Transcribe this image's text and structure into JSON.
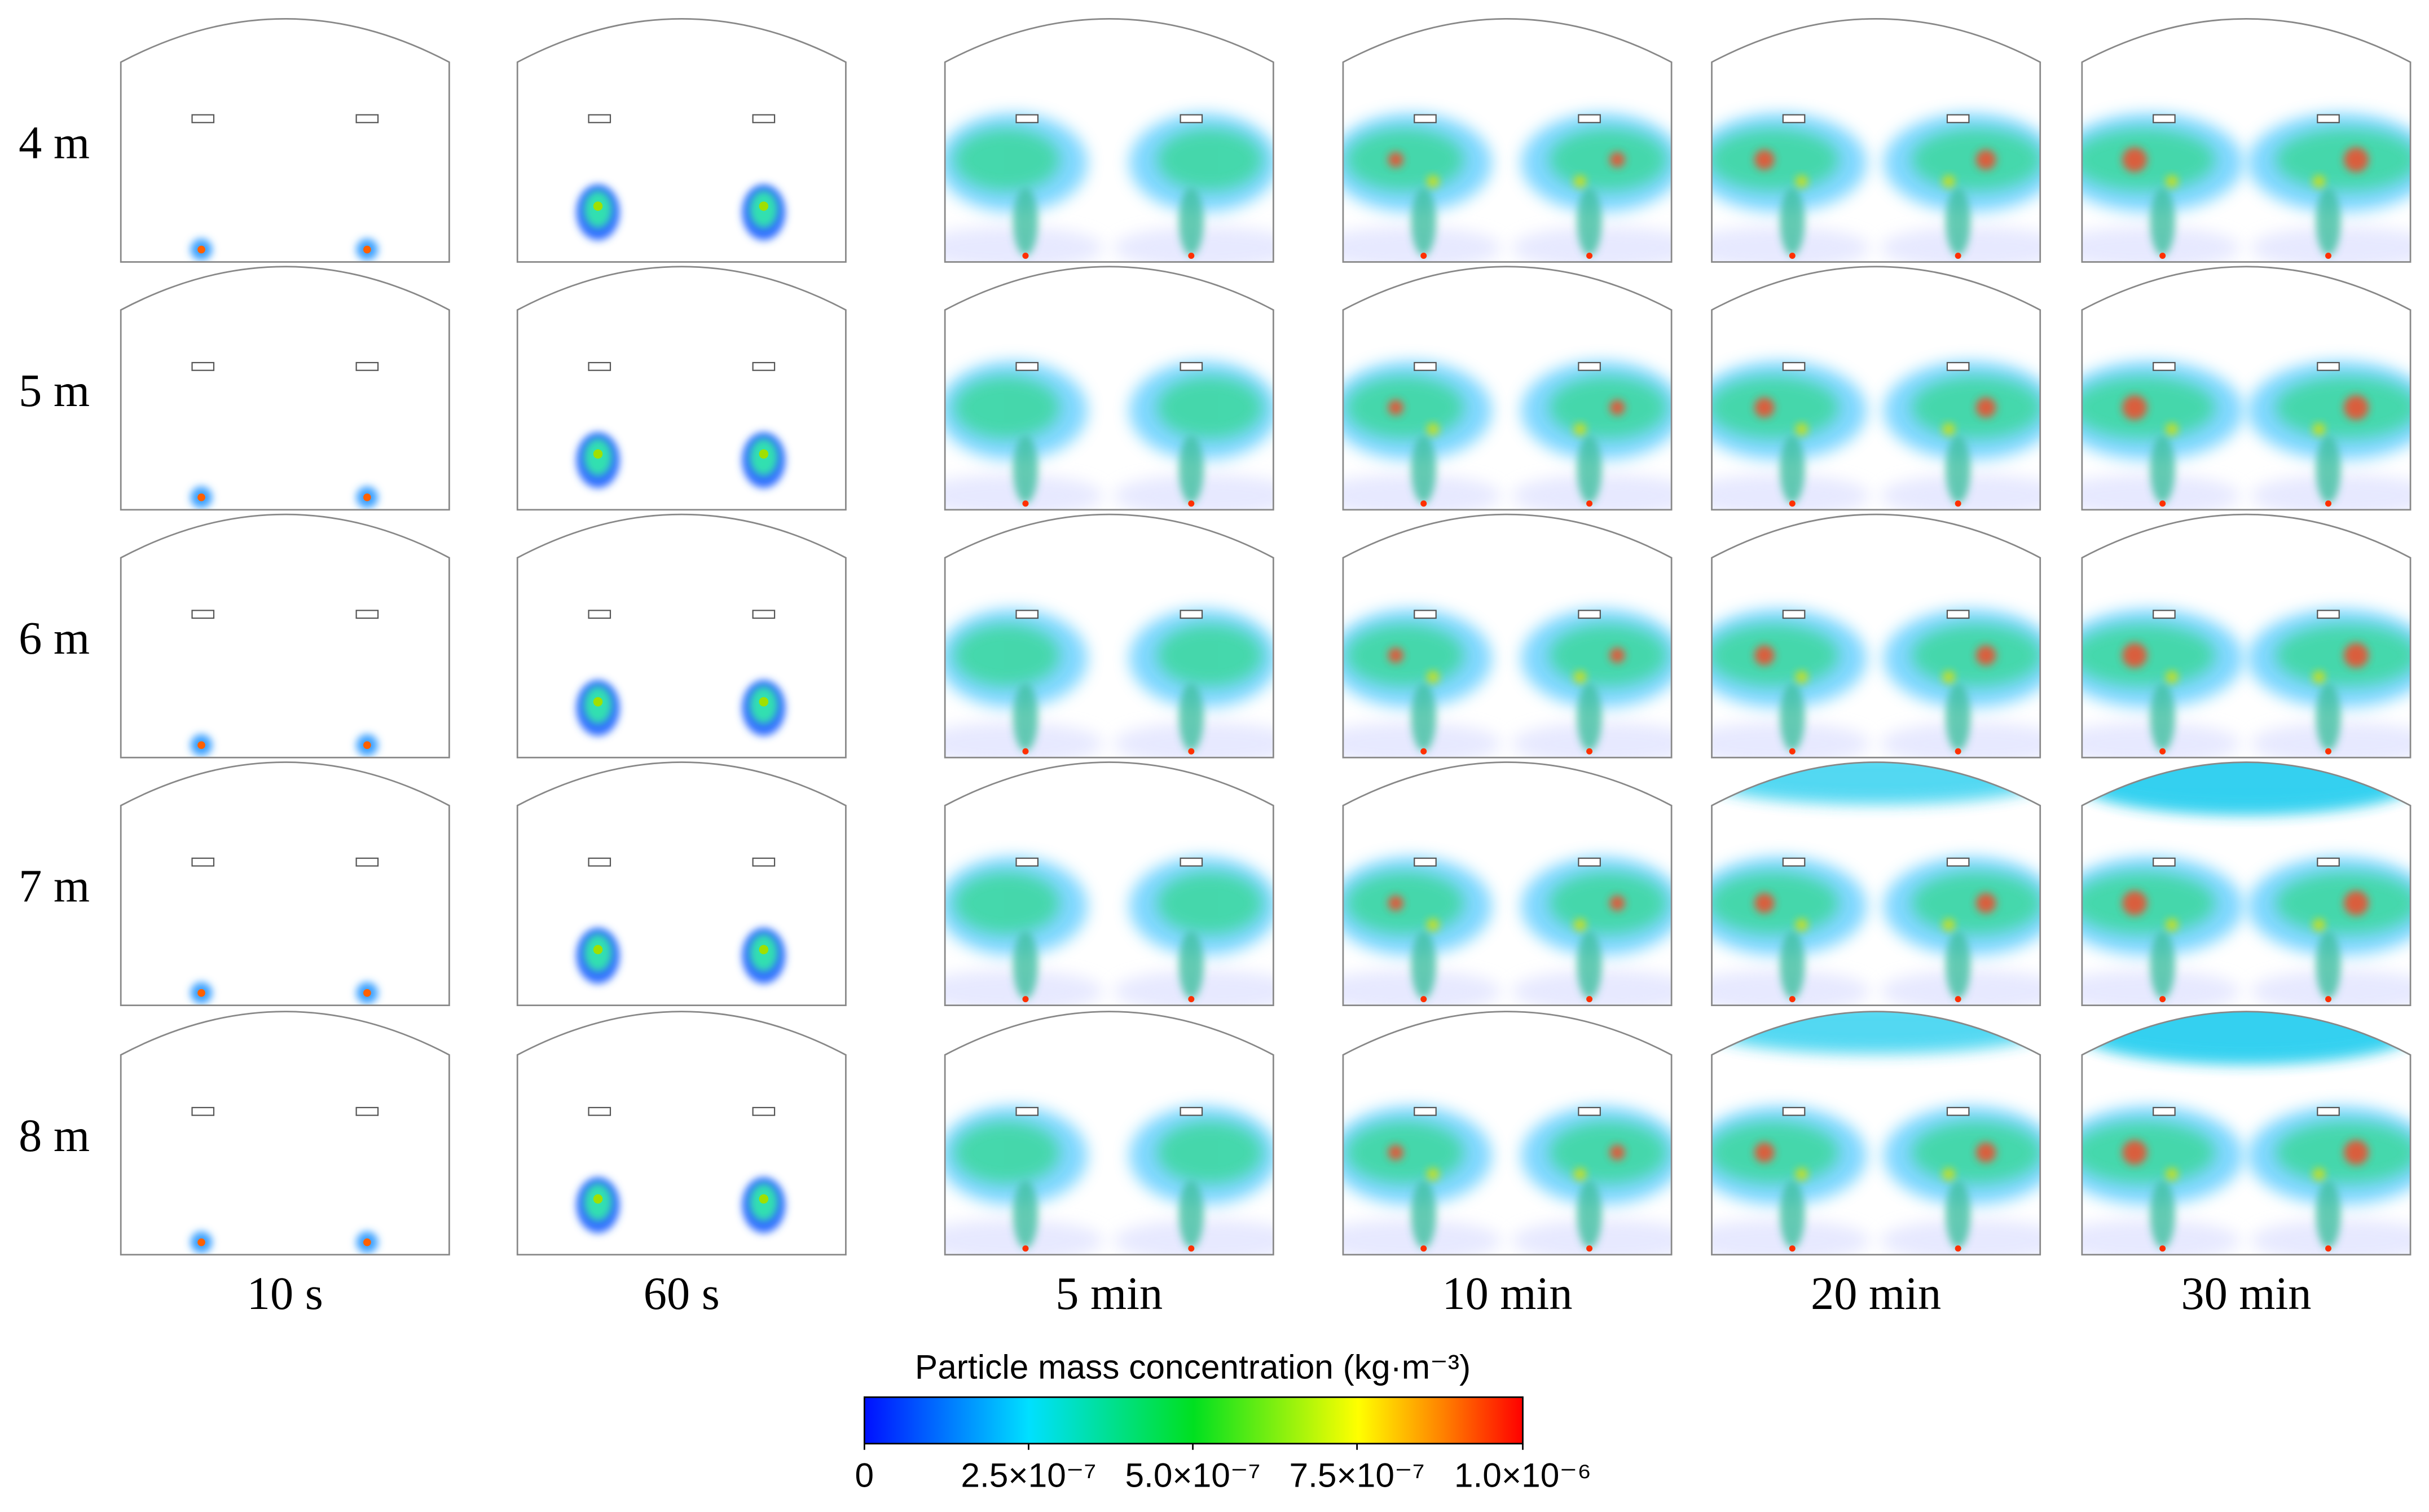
{
  "row_labels": [
    "4 m",
    "5 m",
    "6 m",
    "7 m",
    "8 m"
  ],
  "column_labels": [
    "10 s",
    "60 s",
    "5 min",
    "10 min",
    "20 min",
    "30 min"
  ],
  "colorbar": {
    "title": "Particle mass concentration (kg·m⁻³)",
    "tick_labels": [
      "0",
      "2.5×10⁻⁷",
      "5.0×10⁻⁷",
      "7.5×10⁻⁷",
      "1.0×10⁻⁶"
    ]
  }
}
